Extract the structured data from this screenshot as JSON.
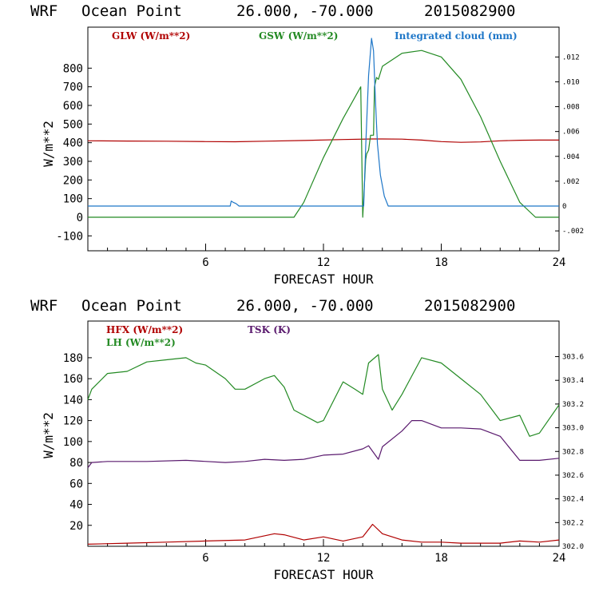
{
  "chart_data": [
    {
      "type": "line",
      "header": {
        "model": "WRF",
        "location": "Ocean Point",
        "coords": "26.000, -70.000",
        "init": "2015082900"
      },
      "xlabel": "FORECAST HOUR",
      "ylabel": "W/m**2",
      "xlim": [
        0,
        24
      ],
      "ylim": [
        -180,
        1020
      ],
      "xticks": [
        6,
        12,
        18,
        24
      ],
      "yticks": [
        -100,
        0,
        100,
        200,
        300,
        400,
        500,
        600,
        700,
        800
      ],
      "y2lim": [
        -0.0036,
        0.0144
      ],
      "y2ticks": [
        -0.002,
        0,
        0.002,
        0.004,
        0.006,
        0.008,
        0.01,
        0.012
      ],
      "y2ticklabels": [
        "-.002",
        "0",
        ".002",
        ".004",
        ".006",
        ".008",
        ".010",
        ".012"
      ],
      "series": [
        {
          "name": "GLW (W/m**2)",
          "color": "#b00000",
          "axis": "left",
          "x": [
            0,
            2,
            4,
            6,
            7.5,
            9,
            11,
            13,
            14.5,
            15,
            16,
            17,
            18,
            19,
            20,
            21,
            22,
            23,
            24
          ],
          "values": [
            410,
            409,
            408,
            406,
            405,
            408,
            412,
            417,
            420,
            420,
            419,
            414,
            406,
            402,
            404,
            410,
            413,
            414,
            414
          ]
        },
        {
          "name": "GSW (W/m**2)",
          "color": "#238a23",
          "axis": "left",
          "x": [
            0,
            10.5,
            11,
            12,
            13,
            13.9,
            14.0,
            14.15,
            14.2,
            14.3,
            14.4,
            14.55,
            14.6,
            14.7,
            14.8,
            15,
            16,
            17,
            18,
            19,
            20,
            21,
            22,
            22.8,
            24
          ],
          "values": [
            0,
            0,
            80,
            320,
            530,
            700,
            0,
            310,
            340,
            360,
            440,
            440,
            700,
            750,
            740,
            810,
            880,
            895,
            860,
            740,
            540,
            300,
            80,
            0,
            0
          ]
        },
        {
          "name": "Integrated cloud (mm)",
          "color": "#1f77c8",
          "axis": "right",
          "x": [
            0,
            7.25,
            7.3,
            7.4,
            7.55,
            7.7,
            14.05,
            14.15,
            14.3,
            14.45,
            14.55,
            14.65,
            14.75,
            14.9,
            15.1,
            15.3,
            24
          ],
          "values": [
            0,
            0,
            0.0004,
            0.0003,
            0.0002,
            0,
            0,
            0.0048,
            0.0105,
            0.0135,
            0.0125,
            0.0085,
            0.005,
            0.0025,
            0.0008,
            0,
            0
          ]
        }
      ]
    },
    {
      "type": "line",
      "header": {
        "model": "WRF",
        "location": "Ocean Point",
        "coords": "26.000, -70.000",
        "init": "2015082900"
      },
      "xlabel": "FORECAST HOUR",
      "ylabel": "W/m**2",
      "xlim": [
        0,
        24
      ],
      "ylim": [
        0,
        215
      ],
      "xticks": [
        6,
        12,
        18,
        24
      ],
      "yticks": [
        20,
        40,
        60,
        80,
        100,
        120,
        140,
        160,
        180
      ],
      "y2lim": [
        302.0,
        303.9
      ],
      "y2ticks": [
        302.0,
        302.2,
        302.4,
        302.6,
        302.8,
        303.0,
        303.2,
        303.4,
        303.6
      ],
      "y2ticklabels": [
        "302.0",
        "302.2",
        "302.4",
        "302.6",
        "302.8",
        "303.0",
        "303.2",
        "303.4",
        "303.6"
      ],
      "series": [
        {
          "name": "HFX (W/m**2)",
          "color": "#b00000",
          "axis": "left",
          "x": [
            0,
            2,
            4,
            6,
            8,
            9.5,
            10,
            11,
            12,
            13,
            14,
            14.5,
            15,
            16,
            17,
            18,
            19,
            20,
            21,
            22,
            23,
            24
          ],
          "values": [
            2,
            3,
            4,
            5,
            6,
            12,
            11,
            6,
            9,
            5,
            9,
            21,
            12,
            6,
            4,
            4,
            3,
            3,
            3,
            5,
            4,
            6
          ]
        },
        {
          "name": "LH (W/m**2)",
          "color": "#238a23",
          "axis": "left",
          "x": [
            0,
            0.2,
            1,
            2,
            3,
            4,
            5,
            5.5,
            6,
            7,
            7.5,
            8,
            9,
            9.5,
            10,
            10.5,
            11,
            11.7,
            12,
            13,
            13.6,
            14,
            14.3,
            14.8,
            15,
            15.5,
            16,
            17,
            18,
            19,
            20,
            21,
            22,
            22.5,
            23,
            24
          ],
          "values": [
            140,
            150,
            165,
            167,
            176,
            178,
            180,
            175,
            173,
            160,
            150,
            150,
            160,
            163,
            152,
            130,
            125,
            118,
            120,
            157,
            150,
            145,
            175,
            183,
            150,
            130,
            145,
            180,
            175,
            160,
            145,
            120,
            125,
            105,
            108,
            135
          ]
        },
        {
          "name": "TSK (K)",
          "color": "#5a1a6e",
          "axis": "left",
          "x": [
            0,
            0.2,
            1,
            3,
            5,
            7,
            8,
            9,
            10,
            11,
            12,
            13,
            14,
            14.3,
            14.8,
            15,
            16,
            16.5,
            17,
            18,
            19,
            20,
            21,
            22,
            23,
            24
          ],
          "values": [
            75,
            80,
            81,
            81,
            82,
            80,
            81,
            83,
            82,
            83,
            87,
            88,
            93,
            96,
            83,
            95,
            110,
            120,
            120,
            113,
            113,
            112,
            105,
            82,
            82,
            84
          ]
        }
      ]
    }
  ]
}
